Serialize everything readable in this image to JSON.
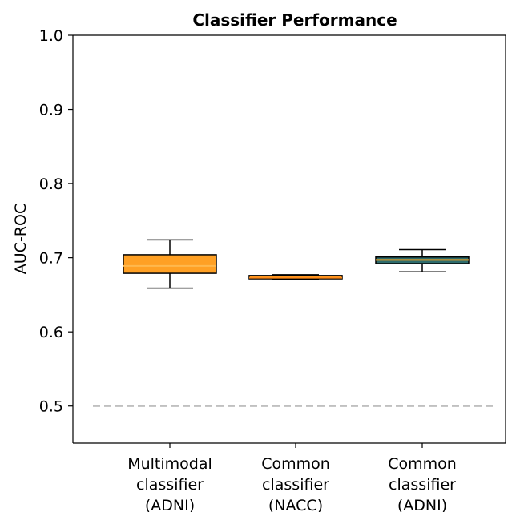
{
  "chart_data": {
    "type": "box",
    "title": "Classifier Performance",
    "xlabel": "",
    "ylabel": "AUC-ROC",
    "ylim": [
      0.45,
      1.0
    ],
    "yticks": [
      0.5,
      0.6,
      0.7,
      0.8,
      0.9,
      1.0
    ],
    "ytick_labels": [
      "0.5",
      "0.6",
      "0.7",
      "0.8",
      "0.9",
      "1.0"
    ],
    "grid": false,
    "reference_line": {
      "y": 0.5,
      "style": "dashed",
      "color": "#c0c0c0"
    },
    "categories": [
      [
        "Multimodal",
        "classifier",
        "(ADNI)"
      ],
      [
        "Common",
        "classifier",
        "(NACC)"
      ],
      [
        "Common",
        "classifier",
        "(ADNI)"
      ]
    ],
    "boxes": [
      {
        "whisker_low": 0.659,
        "q1": 0.679,
        "median": 0.689,
        "q3": 0.704,
        "whisker_high": 0.724,
        "fill": "#ffa024",
        "median_color": "#ffb84d"
      },
      {
        "whisker_low": 0.671,
        "q1": 0.6715,
        "median": 0.673,
        "q3": 0.676,
        "whisker_high": 0.677,
        "fill": "#ffa024",
        "median_color": "#ff8c1a"
      },
      {
        "whisker_low": 0.681,
        "q1": 0.692,
        "median": 0.697,
        "q3": 0.701,
        "whisker_high": 0.711,
        "fill": "#2e6b6b",
        "median_color": "#f0a020"
      }
    ]
  }
}
